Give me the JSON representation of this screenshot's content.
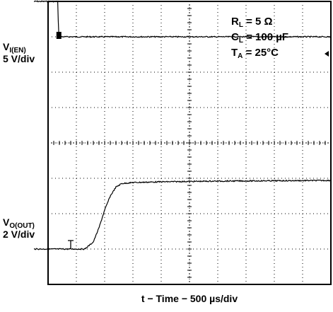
{
  "chart_data": {
    "type": "line",
    "title": "",
    "xlabel": "t − Time − 500 µs/div",
    "x_scale": "500 µs/div",
    "x_divisions": 10,
    "y_divisions": 8,
    "grid": true,
    "conditions": [
      {
        "sym": "R",
        "sub": "L",
        "val": " = 5 Ω"
      },
      {
        "sym": "C",
        "sub": "L",
        "val": " = 100 µF"
      },
      {
        "sym": "T",
        "sub": "A",
        "val": " = 25°C"
      }
    ],
    "series": [
      {
        "key": "en",
        "label_main": "V",
        "label_sub": "I(EN)",
        "scale": "5 V/div",
        "unit": "V",
        "ref_div": 7.0,
        "points": [
          [
            -0.5,
            5.0
          ],
          [
            0.35,
            5.0
          ],
          [
            0.37,
            0.0
          ],
          [
            10,
            0.0
          ]
        ]
      },
      {
        "key": "out",
        "label_main": "V",
        "label_sub": "O(OUT)",
        "scale": "2 V/div",
        "unit": "V",
        "ref_div": 1.0,
        "points": [
          [
            -0.5,
            0.0
          ],
          [
            1.3,
            0.0
          ],
          [
            1.6,
            0.4
          ],
          [
            1.8,
            1.2
          ],
          [
            2.0,
            2.2
          ],
          [
            2.2,
            3.0
          ],
          [
            2.4,
            3.5
          ],
          [
            2.6,
            3.7
          ],
          [
            3.0,
            3.76
          ],
          [
            4.0,
            3.8
          ],
          [
            6.0,
            3.84
          ],
          [
            10,
            3.88
          ]
        ]
      }
    ]
  }
}
